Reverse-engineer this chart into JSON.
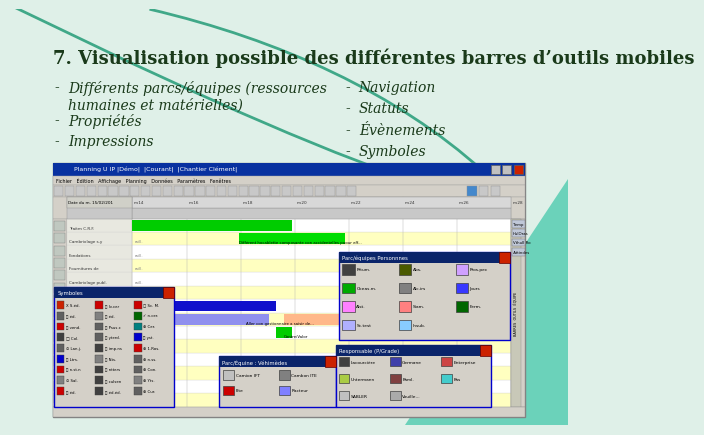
{
  "title": "7. Visualisation possible des différentes barres d’outils mobiles",
  "title_fontsize": 13,
  "title_color": "#1a3a1a",
  "bg_color": "#dff0e8",
  "bullet_left": [
    "Différents parcs/équipes (ressources\nhumaines et matérielles)",
    "Propriétés",
    "Impressions"
  ],
  "bullet_right": [
    "Navigation",
    "Statuts",
    "Évènements",
    "Symboles"
  ],
  "bullet_color": "#1a3a1a",
  "bullet_fontsize": 10,
  "teal_triangle_color": "#5ecfb5",
  "teal_line_color": "#40a888"
}
